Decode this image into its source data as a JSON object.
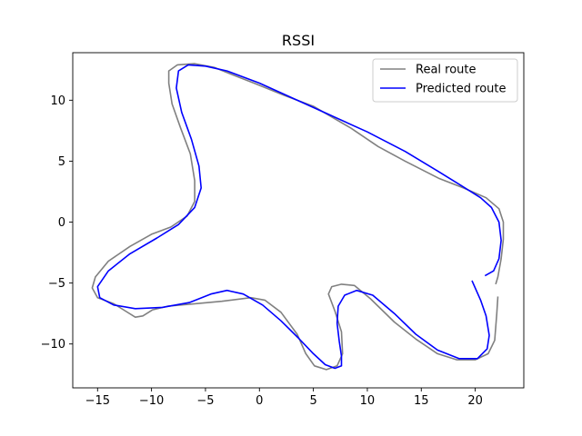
{
  "chart_data": {
    "type": "line",
    "title": "RSSI",
    "xlabel": "",
    "ylabel": "",
    "xlim": [
      -17.3,
      24.5
    ],
    "ylim": [
      -13.6,
      13.9
    ],
    "x_ticks": [
      -15,
      -10,
      -5,
      0,
      5,
      10,
      15,
      20
    ],
    "y_ticks": [
      -10,
      -5,
      0,
      5,
      10
    ],
    "grid": false,
    "legend": {
      "position": "top-right",
      "entries": [
        {
          "label": "Real route",
          "color": "#808080"
        },
        {
          "label": "Predicted route",
          "color": "#0000ff"
        }
      ]
    },
    "series": [
      {
        "name": "Real route",
        "color": "#808080",
        "points": [
          [
            21.9,
            -5.1
          ],
          [
            22.1,
            -4.5
          ],
          [
            22.4,
            -3
          ],
          [
            22.6,
            -1.4
          ],
          [
            22.6,
            0
          ],
          [
            22.2,
            1.1
          ],
          [
            21,
            2
          ],
          [
            18.9,
            2.8
          ],
          [
            16.6,
            3.6
          ],
          [
            13.5,
            5
          ],
          [
            11,
            6.2
          ],
          [
            8.5,
            7.7
          ],
          [
            5,
            9.5
          ],
          [
            2.3,
            10.4
          ],
          [
            -0.5,
            11.4
          ],
          [
            -2.5,
            12.1
          ],
          [
            -4.2,
            12.7
          ],
          [
            -6,
            13
          ],
          [
            -7.6,
            12.9
          ],
          [
            -8.4,
            12.4
          ],
          [
            -8.4,
            11.4
          ],
          [
            -8.1,
            9.7
          ],
          [
            -7.3,
            7.7
          ],
          [
            -6.4,
            5.6
          ],
          [
            -6,
            3.4
          ],
          [
            -6,
            1.7
          ],
          [
            -6.7,
            0.5
          ],
          [
            -8.2,
            -0.4
          ],
          [
            -10,
            -1
          ],
          [
            -12,
            -2
          ],
          [
            -14,
            -3.2
          ],
          [
            -15.2,
            -4.5
          ],
          [
            -15.5,
            -5.4
          ],
          [
            -15,
            -6.2
          ],
          [
            -13.5,
            -6.7
          ],
          [
            -12.4,
            -7.3
          ],
          [
            -11.5,
            -7.8
          ],
          [
            -10.8,
            -7.7
          ],
          [
            -9.9,
            -7.2
          ],
          [
            -8.5,
            -6.9
          ],
          [
            -6,
            -6.7
          ],
          [
            -3.5,
            -6.5
          ],
          [
            -0.8,
            -6.2
          ],
          [
            0.5,
            -6.4
          ],
          [
            2,
            -7.4
          ],
          [
            3.5,
            -9.2
          ],
          [
            4.3,
            -10.8
          ],
          [
            5.1,
            -11.8
          ],
          [
            6.2,
            -12.1
          ],
          [
            7.2,
            -11.8
          ],
          [
            7.7,
            -10.8
          ],
          [
            7.6,
            -9
          ],
          [
            7,
            -7.3
          ],
          [
            6.4,
            -5.9
          ],
          [
            6.7,
            -5.3
          ],
          [
            7.6,
            -5.1
          ],
          [
            8.8,
            -5.2
          ],
          [
            10.3,
            -6.3
          ],
          [
            12.5,
            -8.2
          ],
          [
            14.5,
            -9.6
          ],
          [
            16.5,
            -10.8
          ],
          [
            18.3,
            -11.3
          ],
          [
            20,
            -11.3
          ],
          [
            21.2,
            -10.8
          ],
          [
            21.8,
            -9.7
          ],
          [
            22,
            -7.5
          ],
          [
            22.1,
            -6.1
          ]
        ]
      },
      {
        "name": "Predicted route",
        "color": "#0000ff",
        "points": [
          [
            20.9,
            -4.4
          ],
          [
            21.7,
            -4
          ],
          [
            22.2,
            -3
          ],
          [
            22.4,
            -1.5
          ],
          [
            22.2,
            0
          ],
          [
            21.5,
            1.2
          ],
          [
            20.5,
            2
          ],
          [
            18.7,
            3
          ],
          [
            16.5,
            4.2
          ],
          [
            13.5,
            5.8
          ],
          [
            10,
            7.4
          ],
          [
            6.5,
            8.8
          ],
          [
            3,
            10.2
          ],
          [
            0,
            11.4
          ],
          [
            -3,
            12.4
          ],
          [
            -5,
            12.8
          ],
          [
            -6.6,
            12.9
          ],
          [
            -7.5,
            12.4
          ],
          [
            -7.7,
            11
          ],
          [
            -7.2,
            9
          ],
          [
            -6.3,
            6.8
          ],
          [
            -5.6,
            4.6
          ],
          [
            -5.4,
            2.8
          ],
          [
            -6,
            1.2
          ],
          [
            -7.5,
            -0.2
          ],
          [
            -9.5,
            -1.3
          ],
          [
            -12,
            -2.6
          ],
          [
            -14,
            -4
          ],
          [
            -15,
            -5.3
          ],
          [
            -14.8,
            -6.2
          ],
          [
            -13.5,
            -6.8
          ],
          [
            -11.5,
            -7.1
          ],
          [
            -9,
            -7
          ],
          [
            -6.5,
            -6.6
          ],
          [
            -4.5,
            -5.9
          ],
          [
            -3,
            -5.6
          ],
          [
            -1.5,
            -5.9
          ],
          [
            0.3,
            -6.8
          ],
          [
            2,
            -8.1
          ],
          [
            3.6,
            -9.5
          ],
          [
            5,
            -10.8
          ],
          [
            6.1,
            -11.7
          ],
          [
            7,
            -12
          ],
          [
            7.6,
            -11.8
          ],
          [
            7.6,
            -11
          ],
          [
            7.4,
            -9.8
          ],
          [
            7.2,
            -8.3
          ],
          [
            7.3,
            -6.9
          ],
          [
            7.9,
            -6
          ],
          [
            9,
            -5.6
          ],
          [
            10.5,
            -6
          ],
          [
            12.5,
            -7.5
          ],
          [
            14.5,
            -9.2
          ],
          [
            16.5,
            -10.5
          ],
          [
            18.5,
            -11.2
          ],
          [
            20.2,
            -11.2
          ],
          [
            21.1,
            -10.4
          ],
          [
            21.3,
            -9.3
          ],
          [
            21,
            -7.7
          ],
          [
            20.5,
            -6.4
          ],
          [
            19.7,
            -4.8
          ]
        ]
      }
    ]
  }
}
